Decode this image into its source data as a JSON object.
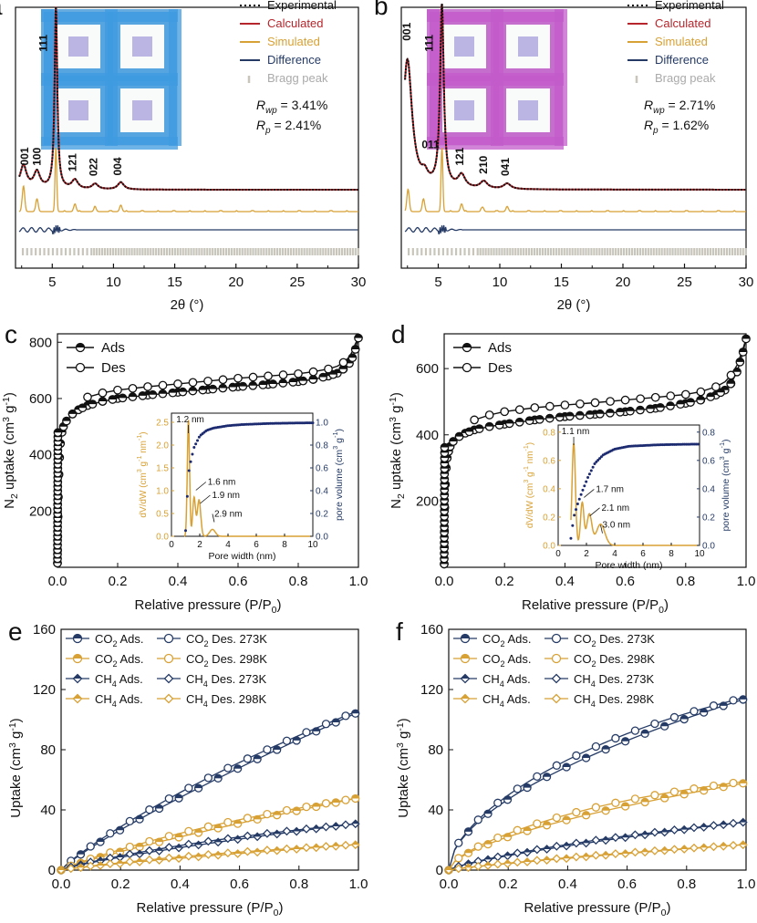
{
  "colors": {
    "black": "#111111",
    "red": "#b5252b",
    "gold": "#d8a135",
    "navy": "#253b66",
    "grey": "#c8c5bb",
    "blue_light": "#3f9be0",
    "magenta": "#c35bcb",
    "pore_dot": "#1c2a70"
  },
  "chart_data": [
    {
      "panel": "a",
      "type": "line",
      "xlabel": "2θ (°)",
      "xlim": [
        2,
        30
      ],
      "xticks": [
        5,
        10,
        15,
        20,
        25,
        30
      ],
      "legend": [
        {
          "name": "Experimental",
          "color": "#111111",
          "dashed": true
        },
        {
          "name": "Calculated",
          "color": "#b5252b"
        },
        {
          "name": "Simulated",
          "color": "#d8a135"
        },
        {
          "name": "Difference",
          "color": "#253b66"
        },
        {
          "name": "Bragg peak",
          "color": "#c8c5bb",
          "marker": "bar"
        }
      ],
      "stats": [
        {
          "label": "R",
          "sub": "wp",
          "value": " = 3.41%"
        },
        {
          "label": "R",
          "sub": "p",
          "value": " = 2.41%"
        }
      ],
      "peaks": [
        {
          "hkl": "111",
          "x": 5.3
        },
        {
          "hkl": "001",
          "x": 2.9
        },
        {
          "hkl": "100",
          "x": 3.9
        },
        {
          "hkl": "121",
          "x": 6.8
        },
        {
          "hkl": "022",
          "x": 8.5
        },
        {
          "hkl": "004",
          "x": 10.5
        }
      ],
      "experimental": {
        "base": 0.15,
        "peaks": [
          [
            2.65,
            0.12,
            0.3
          ],
          [
            3.75,
            0.09,
            0.3
          ],
          [
            5.3,
            1.0,
            0.13
          ],
          [
            6.85,
            0.05,
            0.3
          ],
          [
            8.5,
            0.03,
            0.3
          ],
          [
            10.6,
            0.04,
            0.3
          ]
        ]
      },
      "simulated": {
        "peaks": [
          [
            2.65,
            0.4,
            0.1
          ],
          [
            3.75,
            0.2,
            0.1
          ],
          [
            5.3,
            1.0,
            0.07
          ],
          [
            6.85,
            0.12,
            0.1
          ],
          [
            8.5,
            0.07,
            0.1
          ],
          [
            10.6,
            0.1,
            0.1
          ]
        ]
      }
    },
    {
      "panel": "b",
      "type": "line",
      "xlabel": "2θ (°)",
      "xlim": [
        2,
        30
      ],
      "xticks": [
        5,
        10,
        15,
        20,
        25,
        30
      ],
      "legend": [
        {
          "name": "Experimental",
          "color": "#111111",
          "dashed": true
        },
        {
          "name": "Calculated",
          "color": "#b5252b"
        },
        {
          "name": "Simulated",
          "color": "#d8a135"
        },
        {
          "name": "Difference",
          "color": "#253b66"
        },
        {
          "name": "Bragg peak",
          "color": "#c8c5bb",
          "marker": "bar"
        }
      ],
      "stats": [
        {
          "label": "R",
          "sub": "wp",
          "value": " = 2.71%"
        },
        {
          "label": "R",
          "sub": "p",
          "value": " = 1.62%"
        }
      ],
      "peaks": [
        {
          "hkl": "111",
          "x": 5.3
        },
        {
          "hkl": "001",
          "x": 2.9
        },
        {
          "hkl": "011",
          "x": 4.0
        },
        {
          "hkl": "121",
          "x": 6.9
        },
        {
          "hkl": "210",
          "x": 8.8
        },
        {
          "hkl": "041",
          "x": 10.6
        }
      ],
      "experimental": {
        "base": 0.15,
        "peaks": [
          [
            2.5,
            0.7,
            0.45
          ],
          [
            3.9,
            0.05,
            0.3
          ],
          [
            5.3,
            1.0,
            0.18
          ],
          [
            6.9,
            0.07,
            0.35
          ],
          [
            8.7,
            0.04,
            0.35
          ],
          [
            10.6,
            0.03,
            0.35
          ]
        ]
      },
      "simulated": {
        "peaks": [
          [
            2.55,
            0.35,
            0.1
          ],
          [
            3.8,
            0.2,
            0.1
          ],
          [
            5.3,
            1.0,
            0.07
          ],
          [
            6.9,
            0.12,
            0.1
          ],
          [
            8.6,
            0.07,
            0.1
          ],
          [
            10.6,
            0.08,
            0.1
          ]
        ]
      }
    },
    {
      "panel": "c",
      "type": "line",
      "xlabel": "Relative pressure (P/P",
      "xlabel_sub": "0",
      "xlabel_end": ")",
      "ylabel": "uptake (cm",
      "ylabel_pre": "N",
      "ylabel_pre_sub": "2",
      "xlim": [
        0,
        1
      ],
      "ylim": [
        0,
        830
      ],
      "xticks": [
        0,
        0.2,
        0.4,
        0.6,
        0.8,
        1.0
      ],
      "xtick_labels": [
        "0.0",
        "0.2",
        "0.4",
        "0.6",
        "0.8",
        "1.0"
      ],
      "yticks": [
        200,
        400,
        600,
        800
      ],
      "legend": [
        "Ads",
        "Des"
      ],
      "ads": {
        "x": [
          0,
          0.0005,
          0.001,
          0.002,
          0.003,
          0.005,
          0.007,
          0.01,
          0.015,
          0.02,
          0.03,
          0.05,
          0.07,
          0.1,
          0.15,
          0.2,
          0.3,
          0.4,
          0.5,
          0.6,
          0.7,
          0.8,
          0.85,
          0.9,
          0.93,
          0.95,
          0.97,
          0.98,
          0.99,
          1.0
        ],
        "y": [
          15,
          60,
          110,
          180,
          250,
          330,
          390,
          440,
          480,
          500,
          520,
          545,
          560,
          575,
          590,
          600,
          612,
          622,
          632,
          642,
          650,
          660,
          668,
          680,
          690,
          705,
          725,
          745,
          775,
          815
        ]
      },
      "des": {
        "x": [
          0.1,
          0.15,
          0.2,
          0.3,
          0.4,
          0.5,
          0.6,
          0.7,
          0.8,
          0.85,
          0.9,
          0.93,
          0.95,
          0.97,
          0.98,
          0.99,
          1.0
        ],
        "y": [
          605,
          620,
          630,
          642,
          652,
          662,
          672,
          680,
          688,
          695,
          705,
          715,
          728,
          748,
          768,
          795,
          815
        ]
      },
      "inset": {
        "xlabel": "Pore width (nm)",
        "ylabel_left": "dV/dW (cm",
        "ylabel_right": "pore volume (cm",
        "xlim": [
          0,
          10
        ],
        "ylim_left": [
          0,
          2.7
        ],
        "ylim_right": [
          0,
          1.08
        ],
        "xticks": [
          0,
          2,
          4,
          6,
          8,
          10
        ],
        "yticks_left": [
          "0.0",
          "0.5",
          "1.0",
          "1.5",
          "2.0",
          "2.5"
        ],
        "yticks_right": [
          "0.0",
          "0.2",
          "0.4",
          "0.6",
          "0.8",
          "1.0"
        ],
        "annotations": [
          {
            "text": "1.2 nm",
            "x": 1.2
          },
          {
            "text": "1.6 nm",
            "x": 1.6
          },
          {
            "text": "1.9 nm",
            "x": 1.9
          },
          {
            "text": "2.9 nm",
            "x": 2.9
          }
        ],
        "psd_peaks": [
          [
            1.2,
            2.55,
            0.08
          ],
          [
            1.6,
            0.85,
            0.1
          ],
          [
            1.95,
            0.8,
            0.12
          ],
          [
            2.9,
            0.15,
            0.2
          ]
        ],
        "cum": [
          [
            1.0,
            0.05
          ],
          [
            1.1,
            0.3
          ],
          [
            1.2,
            0.55
          ],
          [
            1.4,
            0.68
          ],
          [
            1.6,
            0.78
          ],
          [
            2.0,
            0.88
          ],
          [
            2.5,
            0.93
          ],
          [
            3,
            0.95
          ],
          [
            4,
            0.97
          ],
          [
            5,
            0.98
          ],
          [
            6,
            0.985
          ],
          [
            7,
            0.99
          ],
          [
            8,
            0.992
          ],
          [
            9,
            0.994
          ],
          [
            10,
            0.995
          ]
        ]
      }
    },
    {
      "panel": "d",
      "type": "line",
      "xlabel": "Relative pressure (P/P",
      "xlabel_sub": "0",
      "xlabel_end": ")",
      "ylabel": "uptake (cm",
      "ylabel_pre": "N",
      "ylabel_pre_sub": "2",
      "xlim": [
        0,
        1
      ],
      "ylim": [
        0,
        705
      ],
      "xticks": [
        0,
        0.2,
        0.4,
        0.6,
        0.8,
        1.0
      ],
      "xtick_labels": [
        "0.0",
        "0.2",
        "0.4",
        "0.6",
        "0.8",
        "1.0"
      ],
      "yticks": [
        200,
        400,
        600
      ],
      "legend": [
        "Ads",
        "Des"
      ],
      "ads": {
        "x": [
          0,
          0.0005,
          0.001,
          0.002,
          0.004,
          0.007,
          0.01,
          0.015,
          0.02,
          0.03,
          0.05,
          0.07,
          0.1,
          0.15,
          0.2,
          0.3,
          0.4,
          0.5,
          0.6,
          0.7,
          0.8,
          0.85,
          0.9,
          0.93,
          0.95,
          0.97,
          0.98,
          0.99,
          1.0
        ],
        "y": [
          10,
          60,
          110,
          180,
          250,
          300,
          330,
          350,
          365,
          380,
          395,
          405,
          415,
          425,
          432,
          445,
          455,
          462,
          470,
          480,
          495,
          505,
          520,
          535,
          555,
          590,
          620,
          650,
          690
        ]
      },
      "des": {
        "x": [
          0.1,
          0.15,
          0.2,
          0.3,
          0.4,
          0.5,
          0.6,
          0.7,
          0.8,
          0.85,
          0.9,
          0.93,
          0.95,
          0.97,
          0.98,
          0.99,
          1.0
        ],
        "y": [
          445,
          460,
          470,
          482,
          490,
          497,
          505,
          513,
          522,
          530,
          545,
          560,
          580,
          610,
          635,
          660,
          690
        ]
      },
      "inset": {
        "xlabel": "Pore width (nm)",
        "ylabel_left": "dV/dW (cm",
        "ylabel_right": "pore volume (cm",
        "xlim": [
          0,
          10
        ],
        "ylim_left": [
          0,
          0.85
        ],
        "ylim_right": [
          0,
          0.85
        ],
        "xticks": [
          0,
          2,
          4,
          6,
          8,
          10
        ],
        "yticks_left": [
          "0.0",
          "0.2",
          "0.4",
          "0.6",
          "0.8"
        ],
        "yticks_right": [
          "0.0",
          "0.2",
          "0.4",
          "0.6",
          "0.8"
        ],
        "annotations": [
          {
            "text": "1.1 nm",
            "x": 1.1
          },
          {
            "text": "1.7 nm",
            "x": 1.7
          },
          {
            "text": "2.1 nm",
            "x": 2.1
          },
          {
            "text": "3.0 nm",
            "x": 3.0
          }
        ],
        "psd_peaks": [
          [
            1.1,
            0.72,
            0.12
          ],
          [
            1.7,
            0.3,
            0.12
          ],
          [
            2.2,
            0.22,
            0.18
          ],
          [
            3.0,
            0.15,
            0.3
          ]
        ],
        "cum": [
          [
            0.9,
            0.05
          ],
          [
            1.1,
            0.2
          ],
          [
            1.4,
            0.3
          ],
          [
            1.7,
            0.38
          ],
          [
            2.1,
            0.48
          ],
          [
            2.6,
            0.58
          ],
          [
            3.2,
            0.64
          ],
          [
            4,
            0.68
          ],
          [
            5,
            0.7
          ],
          [
            6,
            0.705
          ],
          [
            7,
            0.71
          ],
          [
            8,
            0.712
          ],
          [
            9,
            0.714
          ],
          [
            10,
            0.715
          ]
        ]
      }
    },
    {
      "panel": "e",
      "type": "line",
      "xlabel": "Relative pressure (P/P",
      "xlabel_sub": "0",
      "xlabel_end": ")",
      "ylabel": "Uptake (cm",
      "xlim": [
        0,
        1
      ],
      "ylim": [
        0,
        160
      ],
      "xticks": [
        0,
        0.2,
        0.4,
        0.6,
        0.8,
        1.0
      ],
      "xtick_labels": [
        "0.0",
        "0.2",
        "0.4",
        "0.6",
        "0.8",
        "1.0"
      ],
      "yticks": [
        0,
        40,
        80,
        120,
        160
      ],
      "legend": [
        {
          "gas": "CO",
          "sub": "2",
          "temp": "273K",
          "color": "#253b66",
          "marker": "circle"
        },
        {
          "gas": "CO",
          "sub": "2",
          "temp": "298K",
          "color": "#d8a135",
          "marker": "circle"
        },
        {
          "gas": "CH",
          "sub": "4",
          "temp": "273K",
          "color": "#253b66",
          "marker": "diamond"
        },
        {
          "gas": "CH",
          "sub": "4",
          "temp": "298K",
          "color": "#d8a135",
          "marker": "diamond"
        }
      ],
      "series": [
        {
          "name": "CO2 273K",
          "color": "#253b66",
          "marker": "circle",
          "ads_end": 105,
          "des_end": 106,
          "shape": 0.85,
          "gap": 3
        },
        {
          "name": "CO2 298K",
          "color": "#d8a135",
          "marker": "circle",
          "ads_end": 48,
          "des_end": 48,
          "shape": 0.85,
          "gap": 2.5
        },
        {
          "name": "CH4 273K",
          "color": "#253b66",
          "marker": "diamond",
          "ads_end": 31,
          "des_end": 31,
          "shape": 0.8,
          "gap": 1.5
        },
        {
          "name": "CH4 298K",
          "color": "#d8a135",
          "marker": "diamond",
          "ads_end": 17,
          "des_end": 17,
          "shape": 0.85,
          "gap": 1
        }
      ]
    },
    {
      "panel": "f",
      "type": "line",
      "xlabel": "Relative pressure (P/P",
      "xlabel_sub": "0",
      "xlabel_end": ")",
      "ylabel": "Uptake (cm",
      "xlim": [
        0,
        1
      ],
      "ylim": [
        0,
        160
      ],
      "xticks": [
        0,
        0.2,
        0.4,
        0.6,
        0.8,
        1.0
      ],
      "xtick_labels": [
        "0.0",
        "0.2",
        "0.4",
        "0.6",
        "0.8",
        "1.0"
      ],
      "yticks": [
        0,
        40,
        80,
        120,
        160
      ],
      "legend": [
        {
          "gas": "CO",
          "sub": "2",
          "temp": "273K",
          "color": "#253b66",
          "marker": "circle"
        },
        {
          "gas": "CO",
          "sub": "2",
          "temp": "298K",
          "color": "#d8a135",
          "marker": "circle"
        },
        {
          "gas": "CH",
          "sub": "4",
          "temp": "273K",
          "color": "#253b66",
          "marker": "diamond"
        },
        {
          "gas": "CH",
          "sub": "4",
          "temp": "298K",
          "color": "#d8a135",
          "marker": "diamond"
        }
      ],
      "series": [
        {
          "name": "CO2 273K",
          "color": "#253b66",
          "marker": "circle",
          "ads_end": 114,
          "des_end": 115,
          "shape": 0.55,
          "gap": 4
        },
        {
          "name": "CO2 298K",
          "color": "#d8a135",
          "marker": "circle",
          "ads_end": 58,
          "des_end": 59,
          "shape": 0.6,
          "gap": 3
        },
        {
          "name": "CH4 273K",
          "color": "#253b66",
          "marker": "diamond",
          "ads_end": 32,
          "des_end": 32,
          "shape": 0.75,
          "gap": 1
        },
        {
          "name": "CH4 298K",
          "color": "#d8a135",
          "marker": "diamond",
          "ads_end": 17,
          "des_end": 17,
          "shape": 0.85,
          "gap": 0.5
        }
      ]
    }
  ],
  "labels": {
    "ads": "Ads.",
    "des": "Des."
  },
  "units": {
    "sup_m3": "3",
    "sup_g": "-1",
    "sup_nm": "-1",
    "g": " g",
    "nm": " nm",
    ")": ")"
  }
}
